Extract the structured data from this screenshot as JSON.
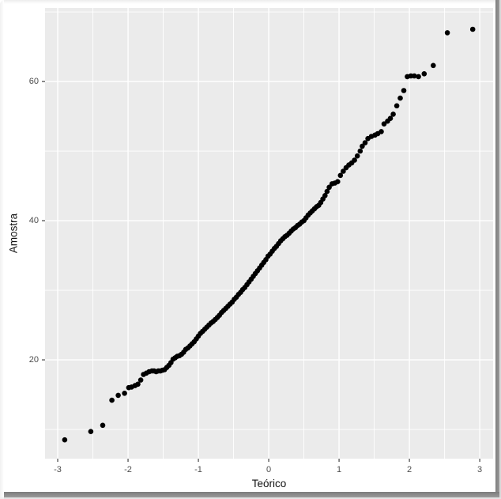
{
  "chart_data": {
    "type": "scatter",
    "title": "",
    "xlabel": "Teórico",
    "ylabel": "Amostra",
    "legend": false,
    "grid": true,
    "xlim": [
      -3.18,
      3.19
    ],
    "ylim": [
      5.8,
      70.57
    ],
    "x_ticks": {
      "values": [
        -3,
        -2,
        -1,
        0,
        1,
        2,
        3
      ],
      "labels": [
        "-3",
        "-2",
        "-1",
        "0",
        "1",
        "2",
        "3"
      ]
    },
    "y_ticks": {
      "values": [
        20,
        40,
        60
      ],
      "labels": [
        "20",
        "40",
        "60"
      ]
    },
    "x_minor": [
      -2.5,
      -1.5,
      -0.5,
      0.5,
      1.5,
      2.5
    ],
    "y_minor": [
      10,
      30,
      50,
      70
    ],
    "colors": {
      "point": "#000000",
      "panel_bg": "#ebebeb",
      "grid_major": "#ffffff",
      "grid_minor": "#ffffff",
      "tick_mark": "#333333",
      "tick_label": "#4d4d4d",
      "axis_title": "#111111"
    },
    "points": [
      [
        -2.9,
        8.5
      ],
      [
        -2.53,
        9.7
      ],
      [
        -2.36,
        10.6
      ],
      [
        -2.23,
        14.2
      ],
      [
        -2.14,
        14.9
      ],
      [
        -2.05,
        15.2
      ],
      [
        -1.99,
        16.0
      ],
      [
        -1.95,
        16.1
      ],
      [
        -1.9,
        16.3
      ],
      [
        -1.86,
        16.5
      ],
      [
        -1.82,
        17.1
      ],
      [
        -1.78,
        17.9
      ],
      [
        -1.74,
        18.1
      ],
      [
        -1.7,
        18.3
      ],
      [
        -1.66,
        18.4
      ],
      [
        -1.63,
        18.4
      ],
      [
        -1.6,
        18.3
      ],
      [
        -1.57,
        18.4
      ],
      [
        -1.54,
        18.4
      ],
      [
        -1.51,
        18.5
      ],
      [
        -1.48,
        18.6
      ],
      [
        -1.45,
        18.9
      ],
      [
        -1.42,
        19.2
      ],
      [
        -1.39,
        19.6
      ],
      [
        -1.36,
        20.1
      ],
      [
        -1.33,
        20.3
      ],
      [
        -1.3,
        20.5
      ],
      [
        -1.27,
        20.6
      ],
      [
        -1.24,
        20.8
      ],
      [
        -1.21,
        21.1
      ],
      [
        -1.18,
        21.5
      ],
      [
        -1.15,
        21.7
      ],
      [
        -1.12,
        22.0
      ],
      [
        -1.09,
        22.3
      ],
      [
        -1.06,
        22.6
      ],
      [
        -1.03,
        23.0
      ],
      [
        -1.0,
        23.4
      ],
      [
        -0.97,
        23.8
      ],
      [
        -0.94,
        24.1
      ],
      [
        -0.91,
        24.4
      ],
      [
        -0.88,
        24.7
      ],
      [
        -0.85,
        25.0
      ],
      [
        -0.82,
        25.3
      ],
      [
        -0.79,
        25.5
      ],
      [
        -0.76,
        25.8
      ],
      [
        -0.73,
        26.1
      ],
      [
        -0.7,
        26.4
      ],
      [
        -0.67,
        26.8
      ],
      [
        -0.64,
        27.1
      ],
      [
        -0.61,
        27.4
      ],
      [
        -0.58,
        27.7
      ],
      [
        -0.55,
        28.0
      ],
      [
        -0.52,
        28.3
      ],
      [
        -0.49,
        28.7
      ],
      [
        -0.46,
        29.0
      ],
      [
        -0.43,
        29.4
      ],
      [
        -0.4,
        29.7
      ],
      [
        -0.37,
        30.1
      ],
      [
        -0.34,
        30.4
      ],
      [
        -0.31,
        30.8
      ],
      [
        -0.28,
        31.2
      ],
      [
        -0.25,
        31.6
      ],
      [
        -0.22,
        32.0
      ],
      [
        -0.19,
        32.4
      ],
      [
        -0.16,
        32.8
      ],
      [
        -0.13,
        33.2
      ],
      [
        -0.1,
        33.6
      ],
      [
        -0.07,
        34.0
      ],
      [
        -0.04,
        34.4
      ],
      [
        -0.01,
        34.9
      ],
      [
        0.02,
        35.2
      ],
      [
        0.05,
        35.6
      ],
      [
        0.08,
        36.0
      ],
      [
        0.11,
        36.3
      ],
      [
        0.14,
        36.7
      ],
      [
        0.17,
        37.1
      ],
      [
        0.2,
        37.4
      ],
      [
        0.23,
        37.7
      ],
      [
        0.26,
        37.9
      ],
      [
        0.29,
        38.2
      ],
      [
        0.32,
        38.5
      ],
      [
        0.35,
        38.8
      ],
      [
        0.38,
        39.0
      ],
      [
        0.41,
        39.3
      ],
      [
        0.44,
        39.5
      ],
      [
        0.47,
        39.8
      ],
      [
        0.5,
        40.0
      ],
      [
        0.53,
        40.4
      ],
      [
        0.56,
        40.8
      ],
      [
        0.59,
        41.1
      ],
      [
        0.62,
        41.4
      ],
      [
        0.65,
        41.7
      ],
      [
        0.68,
        42.0
      ],
      [
        0.71,
        42.2
      ],
      [
        0.74,
        42.6
      ],
      [
        0.77,
        43.1
      ],
      [
        0.8,
        43.6
      ],
      [
        0.83,
        44.2
      ],
      [
        0.86,
        44.8
      ],
      [
        0.9,
        45.3
      ],
      [
        0.94,
        45.4
      ],
      [
        0.98,
        45.6
      ],
      [
        1.02,
        46.5
      ],
      [
        1.06,
        47.1
      ],
      [
        1.1,
        47.6
      ],
      [
        1.14,
        48.0
      ],
      [
        1.18,
        48.3
      ],
      [
        1.22,
        48.7
      ],
      [
        1.26,
        49.3
      ],
      [
        1.3,
        50.0
      ],
      [
        1.33,
        50.7
      ],
      [
        1.37,
        51.2
      ],
      [
        1.41,
        51.8
      ],
      [
        1.46,
        52.1
      ],
      [
        1.51,
        52.3
      ],
      [
        1.55,
        52.5
      ],
      [
        1.6,
        52.8
      ],
      [
        1.64,
        53.9
      ],
      [
        1.69,
        54.3
      ],
      [
        1.73,
        54.7
      ],
      [
        1.77,
        55.3
      ],
      [
        1.82,
        56.5
      ],
      [
        1.87,
        57.6
      ],
      [
        1.92,
        58.7
      ],
      [
        1.97,
        60.7
      ],
      [
        2.02,
        60.8
      ],
      [
        2.07,
        60.8
      ],
      [
        2.13,
        60.7
      ],
      [
        2.21,
        61.1
      ],
      [
        2.34,
        62.3
      ],
      [
        2.54,
        67.0
      ],
      [
        2.9,
        67.5
      ]
    ]
  }
}
